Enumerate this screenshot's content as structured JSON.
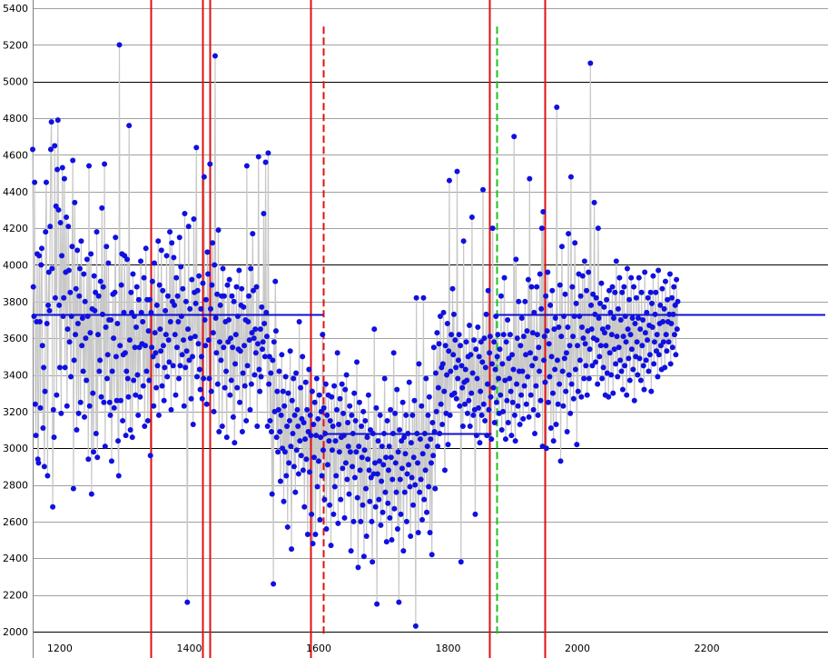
{
  "chart_data": {
    "type": "scatter",
    "title": "",
    "xlabel": "",
    "ylabel": "",
    "xlim": [
      1158,
      2383
    ],
    "ylim": [
      1960,
      5420
    ],
    "grid": true,
    "legend": "none",
    "x_ticks": [
      1200,
      1400,
      1600,
      1800,
      2000,
      2200
    ],
    "x_tick_labels": [
      "1200",
      "1400",
      "1600",
      "1800",
      "2000",
      "2200"
    ],
    "y_ticks": [
      2000,
      2200,
      2400,
      2600,
      2800,
      3000,
      3200,
      3400,
      3600,
      3800,
      4000,
      4200,
      4400,
      4600,
      4800,
      5000,
      5200,
      5400
    ],
    "y_tick_labels": [
      "2000",
      "2200",
      "2400",
      "2600",
      "2800",
      "3000",
      "3200",
      "3400",
      "3600",
      "3800",
      "4000",
      "4200",
      "4400",
      "4600",
      "4800",
      "5000",
      "5200",
      "5400"
    ],
    "major_y_gridlines": [
      2000,
      3000,
      4000,
      5000
    ],
    "series": [
      {
        "x_start": 1158,
        "x_step": 1,
        "marker_color": "#1010e0",
        "line_color": "#c8c8c8",
        "values": [
          4630,
          3880,
          3720,
          4450,
          3240,
          3070,
          3690,
          4060,
          2940,
          2920,
          4050,
          3690,
          3220,
          4000,
          4090,
          3560,
          3110,
          3440,
          2900,
          3310,
          4180,
          4450,
          3680,
          2850,
          3780,
          3960,
          3750,
          4210,
          4630,
          4780,
          3980,
          2680,
          3210,
          3060,
          4650,
          3820,
          4320,
          3290,
          4520,
          4790,
          4300,
          3780,
          3440,
          4230,
          3190,
          4050,
          4530,
          3720,
          3820,
          4470,
          3440,
          3960,
          4260,
          3230,
          3650,
          4210,
          3970,
          3580,
          3850,
          3390,
          3720,
          4100,
          4570,
          2780,
          3480,
          4340,
          3620,
          3870,
          3100,
          4080,
          3680,
          3190,
          3830,
          3980,
          3250,
          4130,
          3560,
          3710,
          3420,
          3950,
          3170,
          3800,
          3600,
          3370,
          4030,
          3720,
          2940,
          4540,
          3230,
          3630,
          4060,
          2750,
          3760,
          3300,
          2980,
          3940,
          3750,
          3850,
          3080,
          4180,
          2950,
          3620,
          3830,
          3420,
          3480,
          3910,
          3280,
          4310,
          3730,
          3880,
          3250,
          4550,
          3010,
          3660,
          4100,
          3380,
          3510,
          4010,
          3700,
          3250,
          3180,
          3700,
          2930,
          3420,
          3840,
          3600,
          3220,
          3850,
          4150,
          3500,
          3260,
          3680,
          3040,
          2850,
          5200,
          3560,
          3260,
          3890,
          4060,
          3150,
          3510,
          3740,
          4050,
          3520,
          3070,
          3420,
          4030,
          3380,
          3280,
          4760,
          3590,
          3100,
          3850,
          3740,
          3060,
          3950,
          3370,
          3720,
          3550,
          3290,
          3660,
          3880,
          3400,
          3180,
          3810,
          3550,
          3280,
          4020,
          3740,
          3570,
          3690,
          3340,
          3930,
          3120,
          3560,
          4090,
          3420,
          3810,
          3150,
          3640,
          3370,
          3810,
          2960,
          3740,
          3550,
          3910,
          3500,
          3230,
          4010,
          3630,
          3520,
          3330,
          3780,
          3450,
          4130,
          3180,
          3890,
          3650,
          3530,
          4080,
          3340,
          3860,
          3560,
          3260,
          3440,
          3750,
          3620,
          4050,
          3390,
          3830,
          3590,
          3470,
          4180,
          3690,
          3210,
          4120,
          3800,
          3450,
          4040,
          3780,
          3620,
          3290,
          3930,
          3550,
          3830,
          3690,
          3380,
          4150,
          3450,
          3990,
          3720,
          3510,
          3870,
          3590,
          3230,
          4280,
          3440,
          3800,
          3530,
          2160,
          3650,
          4210,
          3480,
          3760,
          3600,
          3270,
          3920,
          3500,
          3130,
          4250,
          3850,
          3610,
          3790,
          4640,
          3390,
          3860,
          3570,
          3940,
          3430,
          3320,
          3760,
          3500,
          3270,
          3900,
          3380,
          4480,
          3700,
          3560,
          3810,
          3240,
          4070,
          3950,
          3590,
          3380,
          4550,
          3760,
          3310,
          3890,
          4120,
          3630,
          3200,
          4000,
          5140,
          3710,
          3520,
          3840,
          3350,
          4190,
          3090,
          3580,
          3780,
          3480,
          3830,
          3120,
          3980,
          3550,
          3830,
          3330,
          3690,
          3420,
          3060,
          3890,
          3580,
          3700,
          3920,
          3290,
          3600,
          3370,
          3830,
          3550,
          3170,
          3800,
          3030,
          3460,
          3620,
          3880,
          3330,
          3720,
          3540,
          3970,
          3250,
          3530,
          3780,
          3870,
          3090,
          3410,
          3770,
          3560,
          3340,
          3700,
          3150,
          4540,
          3450,
          3690,
          3830,
          3590,
          3210,
          3980,
          3350,
          3630,
          4170,
          3860,
          3600,
          3400,
          3650,
          3520,
          3880,
          3120,
          3570,
          4590,
          3430,
          3310,
          3650,
          3390,
          3770,
          3540,
          3580,
          4280,
          3680,
          3500,
          4560,
          3740,
          3610,
          3120,
          4610,
          3350,
          3500,
          3150,
          3410,
          3090,
          2750,
          3480,
          2260,
          3580,
          3200,
          3910,
          3640,
          3060,
          3310,
          2980,
          3210,
          3420,
          3090,
          2820,
          3180,
          3510,
          3000,
          3310,
          2710,
          3230,
          2980,
          3390,
          2850,
          3120,
          2570,
          3300,
          2920,
          3150,
          3530,
          3010,
          2450,
          3260,
          3080,
          3380,
          2900,
          3180,
          2760,
          3410,
          2990,
          3210,
          3120,
          2860,
          3690,
          3040,
          3330,
          2960,
          3160,
          3500,
          2880,
          3140,
          2680,
          3050,
          3360,
          2940,
          3210,
          2530,
          3090,
          3430,
          2870,
          3180,
          3070,
          2640,
          3310,
          2480,
          3130,
          2950,
          3250,
          2530,
          3070,
          3380,
          2790,
          3160,
          2930,
          3290,
          2610,
          3060,
          3200,
          2850,
          3620,
          2990,
          3220,
          2720,
          3080,
          3350,
          2560,
          3180,
          2910,
          3290,
          3040,
          2690,
          3150,
          2470,
          3280,
          2990,
          3120,
          2640,
          3340,
          2790,
          3040,
          2850,
          3210,
          3520,
          2590,
          3130,
          2980,
          3270,
          2720,
          3060,
          3350,
          2890,
          3190,
          3070,
          2620,
          3320,
          2920,
          3400,
          2830,
          3140,
          3010,
          2750,
          3230,
          2980,
          2440,
          3180,
          2900,
          3080,
          2600,
          3300,
          2840,
          3150,
          2980,
          3470,
          2730,
          2350,
          3010,
          3250,
          2880,
          2600,
          3120,
          2950,
          2690,
          3200,
          2410,
          2990,
          3150,
          2780,
          2520,
          3060,
          2940,
          3290,
          2880,
          2710,
          3100,
          2840,
          2600,
          2380,
          3080,
          2860,
          3650,
          2920,
          2680,
          3220,
          2150,
          2860,
          3040,
          2720,
          2930,
          3180,
          2580,
          2820,
          3010,
          2650,
          2910,
          3080,
          3380,
          2760,
          2950,
          2490,
          3150,
          2700,
          2880,
          3010,
          2620,
          3210,
          2950,
          2500,
          2830,
          3080,
          3520,
          2670,
          3190,
          2920,
          2760,
          3320,
          2560,
          2980,
          2160,
          3100,
          2830,
          2640,
          3040,
          2890,
          3250,
          2440,
          3060,
          2760,
          2970,
          3180,
          2600,
          2860,
          3080,
          2910,
          3360,
          2790,
          2520,
          3030,
          2840,
          3180,
          2690,
          2950,
          3260,
          2800,
          2030,
          3820,
          3080,
          2920,
          2540,
          3460,
          2760,
          3050,
          2830,
          3230,
          2610,
          2970,
          3820,
          2720,
          3080,
          2880,
          3380,
          2650,
          3010,
          3180,
          2790,
          3280,
          2540,
          3050,
          2920,
          2420,
          3140,
          2960,
          3550,
          3090,
          2780,
          3410,
          3200,
          3630,
          3010,
          3330,
          3570,
          3080,
          3720,
          3240,
          3440,
          3130,
          3460,
          3740,
          3310,
          2880,
          3560,
          3190,
          3400,
          3680,
          3020,
          3530,
          4460,
          3180,
          3420,
          3620,
          3290,
          3870,
          3510,
          3730,
          3300,
          3590,
          3440,
          3270,
          4510,
          3380,
          3480,
          3620,
          3230,
          3560,
          2380,
          3450,
          3330,
          3120,
          4130,
          3360,
          3240,
          3430,
          3580,
          3370,
          3190,
          3500,
          3260,
          3670,
          3120,
          3510,
          3300,
          4260,
          3410,
          3180,
          3590,
          3210,
          2640,
          3540,
          3070,
          3380,
          3660,
          3220,
          3500,
          3030,
          3310,
          3580,
          3180,
          3470,
          4410,
          3240,
          3600,
          3150,
          3440,
          3730,
          3070,
          3350,
          3860,
          3210,
          3520,
          3610,
          3280,
          3050,
          3460,
          4200,
          3330,
          3580,
          3140,
          3430,
          3720,
          3250,
          3500,
          3620,
          3380,
          3190,
          3540,
          3290,
          3830,
          3100,
          3460,
          3200,
          3620,
          3930,
          3370,
          3050,
          3580,
          3260,
          3700,
          3140,
          3490,
          3380,
          3620,
          3310,
          3070,
          3510,
          3250,
          3430,
          4700,
          3180,
          3040,
          4030,
          3350,
          3600,
          3230,
          3800,
          3420,
          3130,
          3560,
          3290,
          3710,
          3420,
          3160,
          3610,
          3340,
          3800,
          3510,
          3240,
          3640,
          3390,
          3920,
          3170,
          4470,
          3520,
          3290,
          3880,
          3450,
          3630,
          3210,
          3740,
          3080,
          3490,
          3340,
          3880,
          3620,
          3180,
          3550,
          3420,
          3950,
          3260,
          3760,
          4200,
          3010,
          4290,
          3480,
          3610,
          3360,
          3830,
          3000,
          3640,
          3960,
          3250,
          3570,
          3390,
          3780,
          3110,
          3500,
          3860,
          3300,
          3040,
          3650,
          3430,
          3710,
          3130,
          4860,
          3480,
          3240,
          3660,
          3350,
          3890,
          2930,
          3610,
          4100,
          3420,
          3230,
          3720,
          3490,
          3840,
          3310,
          3520,
          3090,
          3660,
          4170,
          3400,
          3560,
          3190,
          4480,
          3350,
          3880,
          3610,
          3270,
          3720,
          4120,
          3430,
          3790,
          3020,
          3560,
          3310,
          3950,
          3720,
          3480,
          3830,
          3280,
          3660,
          3940,
          3600,
          3380,
          4020,
          3570,
          3450,
          3860,
          3290,
          3640,
          3960,
          3380,
          3540,
          5100,
          3780,
          3650,
          3450,
          3840,
          3600,
          4340,
          3730,
          3470,
          3820,
          3590,
          3350,
          4200,
          3710,
          3500,
          3790,
          3560,
          3900,
          3380,
          3650,
          3440,
          3770,
          3630,
          3290,
          3560,
          3810,
          3410,
          3660,
          3280,
          3860,
          3520,
          3740,
          3400,
          3620,
          3880,
          3300,
          3710,
          3540,
          3850,
          3460,
          4020,
          3610,
          3390,
          3760,
          3550,
          3930,
          3480,
          3700,
          3420,
          3850,
          3320,
          3610,
          3880,
          3450,
          3720,
          3580,
          3290,
          3980,
          3650,
          3490,
          3810,
          3370,
          3620,
          3930,
          3540,
          3710,
          3430,
          3880,
          3260,
          3680,
          3500,
          3820,
          3580,
          3400,
          3710,
          3930,
          3490,
          3650,
          3370,
          3850,
          3560,
          3700,
          3450,
          3320,
          3960,
          3630,
          3480,
          3740,
          3590,
          3820,
          3420,
          3670,
          3510,
          3850,
          3310,
          3790,
          3660,
          3940,
          3460,
          3580,
          3730,
          3850,
          3530,
          3620,
          3390,
          3970,
          3510,
          3680,
          3780,
          3560,
          3430,
          3870,
          3690,
          3580,
          3760,
          3440,
          3910,
          3620,
          3530,
          3810,
          3690,
          3580,
          3730,
          3950,
          3460,
          3680,
          3820,
          3550,
          3730,
          3880,
          3620,
          3780,
          3510,
          3920,
          3650,
          3800
        ]
      }
    ],
    "segment_means": [
      {
        "x_start": 1158,
        "x_end": 1607,
        "value": 3730
      },
      {
        "x_start": 1607,
        "x_end": 1867,
        "value": 3080
      },
      {
        "x_start": 1875,
        "x_end": 2383,
        "value": 3730
      }
    ],
    "vertical_lines": [
      {
        "x": 1341,
        "color": "#e01010",
        "style": "solid",
        "full": true
      },
      {
        "x": 1420,
        "color": "#e01010",
        "style": "solid",
        "full": true
      },
      {
        "x": 1432,
        "color": "#e01010",
        "style": "solid",
        "full": true
      },
      {
        "x": 1588,
        "color": "#e01010",
        "style": "solid",
        "full": true
      },
      {
        "x": 1607,
        "color": "#e01010",
        "style": "dashed",
        "full": false,
        "y_top": 5300,
        "y_bottom": 1980
      },
      {
        "x": 1864,
        "color": "#e01010",
        "style": "solid",
        "full": true
      },
      {
        "x": 1875,
        "color": "#20c020",
        "style": "dashed",
        "full": false,
        "y_top": 5300,
        "y_bottom": 1980
      },
      {
        "x": 1950,
        "color": "#e01010",
        "style": "solid",
        "full": true
      }
    ]
  }
}
